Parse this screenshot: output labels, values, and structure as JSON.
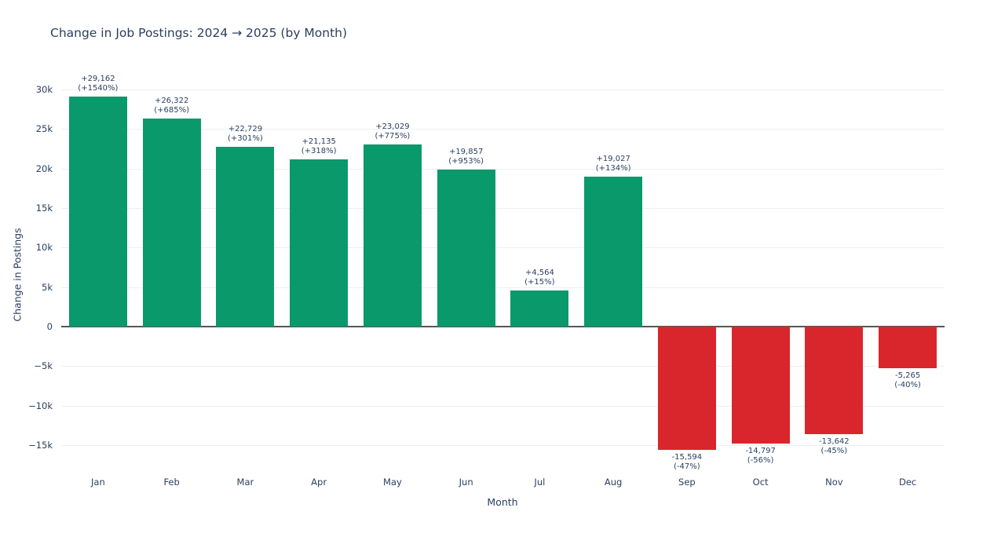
{
  "title": "Change in Job Postings: 2024 → 2025 (by Month)",
  "chart_data": {
    "type": "bar",
    "title": "Change in Job Postings: 2024 → 2025 (by Month)",
    "xlabel": "Month",
    "ylabel": "Change in Postings",
    "categories": [
      "Jan",
      "Feb",
      "Mar",
      "Apr",
      "May",
      "Jun",
      "Jul",
      "Aug",
      "Sep",
      "Oct",
      "Nov",
      "Dec"
    ],
    "values": [
      29162,
      26322,
      22729,
      21135,
      23029,
      19857,
      4564,
      19027,
      -15594,
      -14797,
      -13642,
      -5265
    ],
    "value_labels": [
      "+29,162",
      "+26,322",
      "+22,729",
      "+21,135",
      "+23,029",
      "+19,857",
      "+4,564",
      "+19,027",
      "-15,594",
      "-14,797",
      "-13,642",
      "-5,265"
    ],
    "pct_labels": [
      "(+1540%)",
      "(+685%)",
      "(+301%)",
      "(+318%)",
      "(+775%)",
      "(+953%)",
      "(+15%)",
      "(+134%)",
      "(-47%)",
      "(-56%)",
      "(-45%)",
      "(-40%)"
    ],
    "y_ticks": [
      {
        "value": 30000,
        "label": "30k"
      },
      {
        "value": 25000,
        "label": "25k"
      },
      {
        "value": 20000,
        "label": "20k"
      },
      {
        "value": 15000,
        "label": "15k"
      },
      {
        "value": 10000,
        "label": "10k"
      },
      {
        "value": 5000,
        "label": "5k"
      },
      {
        "value": 0,
        "label": "0"
      },
      {
        "value": -5000,
        "label": "−5k"
      },
      {
        "value": -10000,
        "label": "−10k"
      },
      {
        "value": -15000,
        "label": "−15k"
      }
    ],
    "ylim": [
      -17800,
      32400
    ],
    "grid": true,
    "legend": "none",
    "colors": {
      "positive": "#0a996b",
      "negative": "#d9262c",
      "text": "#2a3f5f",
      "grid": "#edeff2",
      "zeroline": "#565656",
      "background": "#ffffff"
    }
  }
}
